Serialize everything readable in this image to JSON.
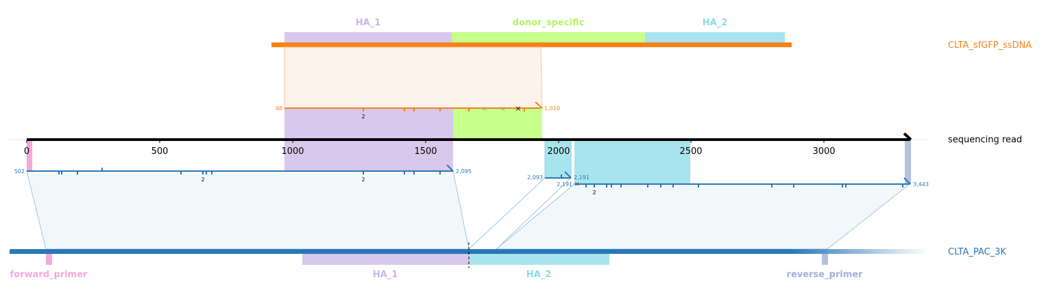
{
  "colors": {
    "ha1": "#d8c8ec",
    "ha1_text": "#c9b6e8",
    "donor": "#c6ff8a",
    "donor_text": "#b5f36a",
    "ha2": "#a8e4ee",
    "ha2_text": "#8adbe8",
    "donor_seq": "#f58218",
    "pac": "#2878b4",
    "read": "#000000",
    "fwd": "#f5a8dc",
    "rev": "#b4c0dc",
    "rev_text": "#a0b0d8"
  },
  "donor": {
    "name": "CLTA_sfGFP_ssDNA",
    "features": {
      "ha1": "HA_1",
      "donor_specific": "donor_specific",
      "ha2": "HA_2"
    },
    "align_start": "48",
    "align_end": "1,010",
    "mismatch_count": "2"
  },
  "read": {
    "name": "sequencing read",
    "ticks": [
      "0",
      "500",
      "1000",
      "1500",
      "2000",
      "2500",
      "3000"
    ]
  },
  "target": {
    "name": "CLTA_PAC_3K",
    "features": {
      "forward_primer": "forward_primer",
      "ha1": "HA_1",
      "ha2": "HA_2",
      "reverse_primer": "reverse_primer"
    },
    "aln1_start": "502",
    "aln1_end": "2,095",
    "aln1_count": "2",
    "aln1_count_b": "2",
    "aln2_start": "2,093",
    "aln2_end": "2,191",
    "aln3_start": "2,191",
    "aln3_end": "3,443",
    "aln3_count": "2"
  }
}
